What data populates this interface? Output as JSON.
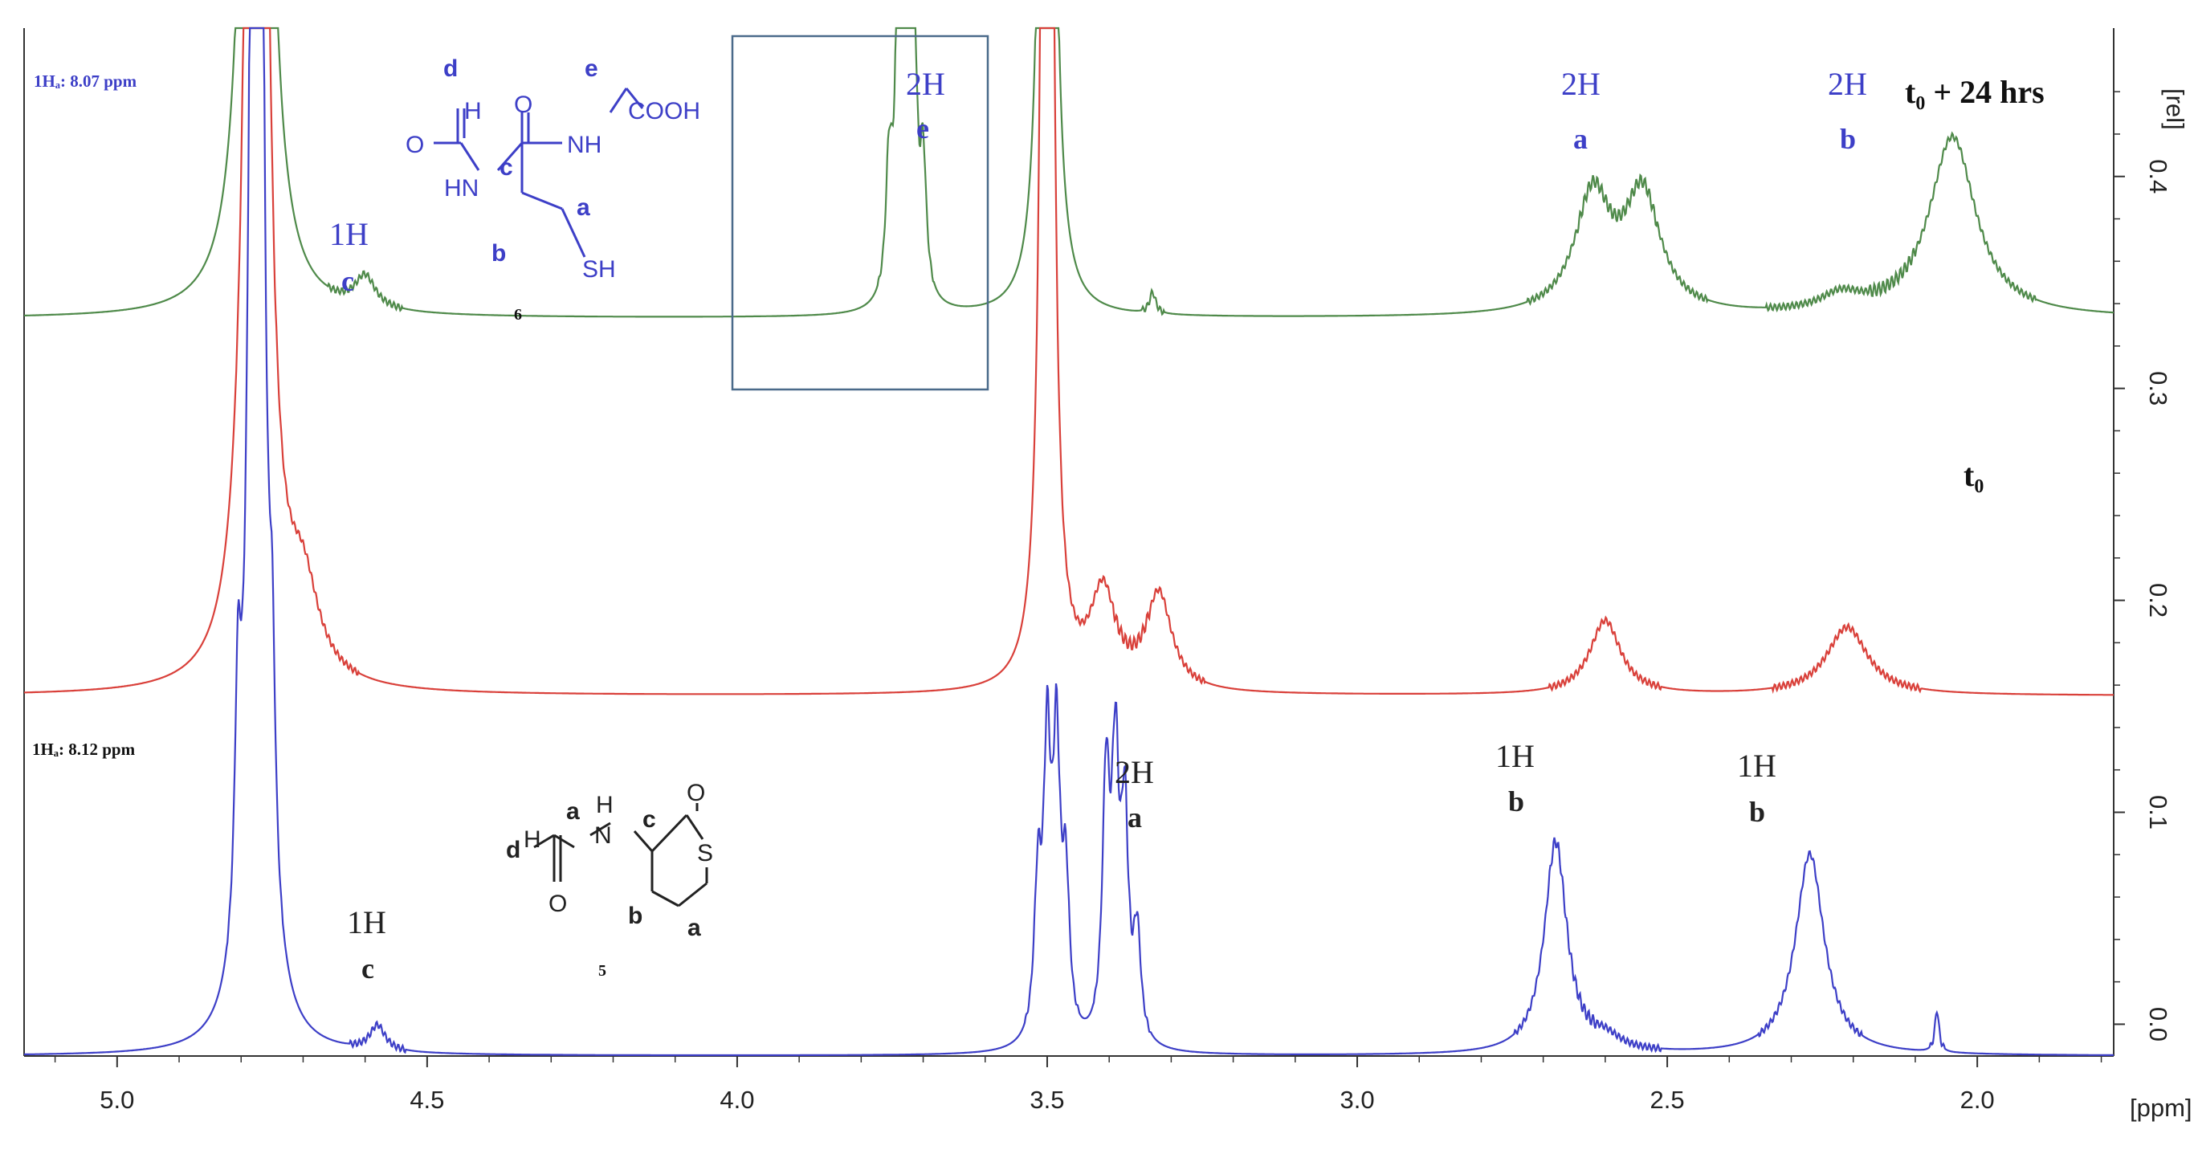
{
  "chart_data": {
    "type": "line",
    "xlabel": "[ppm]",
    "ylabel": "[rel]",
    "xlim": [
      5.15,
      1.78
    ],
    "ylim": [
      -0.015,
      0.47
    ],
    "x_ticks": [
      "5.0",
      "4.5",
      "4.0",
      "3.5",
      "3.0",
      "2.5",
      "2.0"
    ],
    "x_tick_values": [
      5.0,
      4.5,
      4.0,
      3.5,
      3.0,
      2.5,
      2.0
    ],
    "y_ticks": [
      "0.0",
      "0.1",
      "0.2",
      "0.3",
      "0.4"
    ],
    "y_tick_values": [
      0.0,
      0.1,
      0.2,
      0.3,
      0.4
    ],
    "series": [
      {
        "name": "t₀ + 24 hrs",
        "color": "#4f8a4a",
        "baseline": 0.333,
        "peaks": [
          {
            "x": 4.775,
            "w": 0.011,
            "h": 1.5
          },
          {
            "x": 4.6,
            "w": 0.02,
            "h": 0.015
          },
          {
            "x": 3.755,
            "w": 0.006,
            "h": 0.06
          },
          {
            "x": 3.74,
            "w": 0.006,
            "h": 0.14
          },
          {
            "x": 3.728,
            "w": 0.006,
            "h": 0.15
          },
          {
            "x": 3.716,
            "w": 0.006,
            "h": 0.14
          },
          {
            "x": 3.7,
            "w": 0.006,
            "h": 0.06
          },
          {
            "x": 3.5,
            "w": 0.006,
            "h": 1.5
          },
          {
            "x": 3.33,
            "w": 0.006,
            "h": 0.01
          },
          {
            "x": 2.62,
            "w": 0.035,
            "h": 0.055
          },
          {
            "x": 2.54,
            "w": 0.035,
            "h": 0.055
          },
          {
            "x": 2.22,
            "w": 0.04,
            "h": 0.008
          },
          {
            "x": 2.04,
            "w": 0.045,
            "h": 0.085
          }
        ]
      },
      {
        "name": "t₀",
        "color": "#d9403a",
        "baseline": 0.155,
        "peaks": [
          {
            "x": 4.775,
            "w": 0.011,
            "h": 1.5
          },
          {
            "x": 4.7,
            "w": 0.03,
            "h": 0.04
          },
          {
            "x": 3.5,
            "w": 0.006,
            "h": 1.5
          },
          {
            "x": 3.41,
            "w": 0.025,
            "h": 0.045
          },
          {
            "x": 3.32,
            "w": 0.025,
            "h": 0.045
          },
          {
            "x": 2.6,
            "w": 0.03,
            "h": 0.035
          },
          {
            "x": 2.21,
            "w": 0.04,
            "h": 0.032
          }
        ]
      },
      {
        "name": "5",
        "color": "#3d3fc7",
        "baseline": -0.015,
        "peaks": [
          {
            "x": 4.805,
            "w": 0.006,
            "h": 0.11
          },
          {
            "x": 4.775,
            "w": 0.008,
            "h": 1.5
          },
          {
            "x": 4.75,
            "w": 0.006,
            "h": 0.1
          },
          {
            "x": 4.58,
            "w": 0.015,
            "h": 0.012
          },
          {
            "x": 3.515,
            "w": 0.007,
            "h": 0.07
          },
          {
            "x": 3.5,
            "w": 0.007,
            "h": 0.13
          },
          {
            "x": 3.485,
            "w": 0.007,
            "h": 0.13
          },
          {
            "x": 3.47,
            "w": 0.007,
            "h": 0.07
          },
          {
            "x": 3.405,
            "w": 0.007,
            "h": 0.12
          },
          {
            "x": 3.39,
            "w": 0.007,
            "h": 0.125
          },
          {
            "x": 3.375,
            "w": 0.007,
            "h": 0.1
          },
          {
            "x": 3.355,
            "w": 0.007,
            "h": 0.05
          },
          {
            "x": 2.68,
            "w": 0.022,
            "h": 0.1
          },
          {
            "x": 2.6,
            "w": 0.03,
            "h": 0.006
          },
          {
            "x": 2.27,
            "w": 0.028,
            "h": 0.095
          },
          {
            "x": 2.065,
            "w": 0.004,
            "h": 0.02
          }
        ]
      }
    ],
    "annotations": {
      "top_trace": {
        "h_label": "1Hₐ: 8.07 ppm",
        "condition": "t₀ + 24 hrs",
        "compound_number": "6",
        "peaks": [
          {
            "count": "1H",
            "letter": "c"
          },
          {
            "count": "2H",
            "letter": "e"
          },
          {
            "count": "2H",
            "letter": "a"
          },
          {
            "count": "2H",
            "letter": "b"
          }
        ]
      },
      "middle_trace": {
        "condition": "t₀"
      },
      "bottom_trace": {
        "h_label": "1Hₐ: 8.12 ppm",
        "compound_number": "5",
        "peaks": [
          {
            "count": "1H",
            "letter": "c"
          },
          {
            "count": "2H",
            "letter": "a"
          },
          {
            "count": "1H",
            "letter": "b"
          },
          {
            "count": "1H",
            "letter": "b"
          }
        ]
      }
    },
    "molecule_6_labels": {
      "formyl_h": "H",
      "d": "d",
      "e": "e",
      "cooh": "COOH",
      "o_left": "O",
      "o_right": "O",
      "nh_left": "HN",
      "nh_right": "NH",
      "c": "c",
      "a": "a",
      "b": "b",
      "sh": "SH"
    },
    "molecule_5_labels": {
      "d": "d",
      "h": "H",
      "a": "a",
      "nh_h": "H",
      "n": "N",
      "c": "c",
      "o_top": "O",
      "s": "S",
      "o_bottom": "O",
      "b": "b",
      "a2": "a"
    },
    "grid": false
  }
}
